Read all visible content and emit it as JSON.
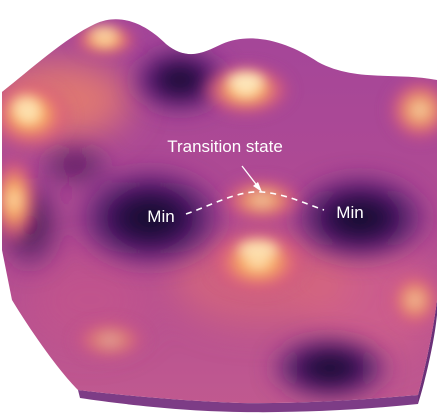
{
  "figure": {
    "annotations": {
      "transition_state": "Transition state",
      "min_left": "Min",
      "min_right": "Min"
    }
  }
}
